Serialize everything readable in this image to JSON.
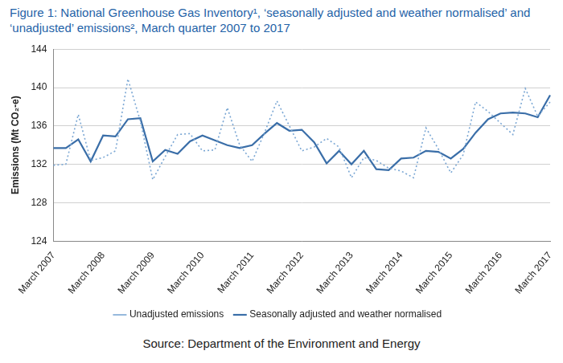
{
  "chart_data": {
    "type": "line",
    "title": "Figure 1: National Greenhouse Gas Inventory¹, ‘seasonally adjusted and weather normalised’ and ‘unadjusted’ emissions², March quarter 2007 to 2017",
    "source": "Source: Department of the Environment and Energy",
    "y_label": "Emissions (Mt CO₂-e)",
    "categories": [
      "March 2007",
      null,
      null,
      null,
      "March 2008",
      null,
      null,
      null,
      "March 2009",
      null,
      null,
      null,
      "March 2010",
      null,
      null,
      null,
      "March 2011",
      null,
      null,
      null,
      "March 2012",
      null,
      null,
      null,
      "March 2013",
      null,
      null,
      null,
      "March 2014",
      null,
      null,
      null,
      "March 2015",
      null,
      null,
      null,
      "March 2016",
      null,
      null,
      null,
      "March 2017"
    ],
    "series": [
      {
        "name": "Unadjusted emissions",
        "color": "#7ba7d4",
        "line_style": "dotted",
        "values": [
          131.9,
          132.0,
          137.2,
          132.4,
          132.7,
          133.4,
          140.9,
          136.5,
          130.4,
          132.8,
          135.1,
          135.2,
          133.4,
          133.5,
          137.9,
          134.0,
          132.3,
          135.3,
          138.6,
          136.0,
          133.4,
          133.8,
          134.7,
          133.8,
          130.6,
          132.7,
          132.4,
          131.6,
          131.3,
          130.6,
          135.8,
          133.6,
          131.1,
          133.0,
          138.5,
          137.5,
          136.3,
          135.1,
          139.9,
          137.0,
          138.5
        ]
      },
      {
        "name": "Seasonally adjusted and weather normalised",
        "color": "#3a6ea8",
        "line_style": "solid",
        "values": [
          133.7,
          133.7,
          134.6,
          132.3,
          135.0,
          134.9,
          136.7,
          136.8,
          132.3,
          133.5,
          133.1,
          134.4,
          135.0,
          134.5,
          134.0,
          133.7,
          134.0,
          135.2,
          136.3,
          135.5,
          135.6,
          134.3,
          132.1,
          133.4,
          132.0,
          133.4,
          131.5,
          131.4,
          132.6,
          132.7,
          133.4,
          133.3,
          132.6,
          133.6,
          135.3,
          136.7,
          137.3,
          137.4,
          137.3,
          136.9,
          139.2
        ]
      }
    ],
    "ylim": [
      124,
      144
    ],
    "yticks": [
      124,
      128,
      132,
      136,
      140,
      144
    ],
    "grid": true,
    "legend": "bottom"
  }
}
